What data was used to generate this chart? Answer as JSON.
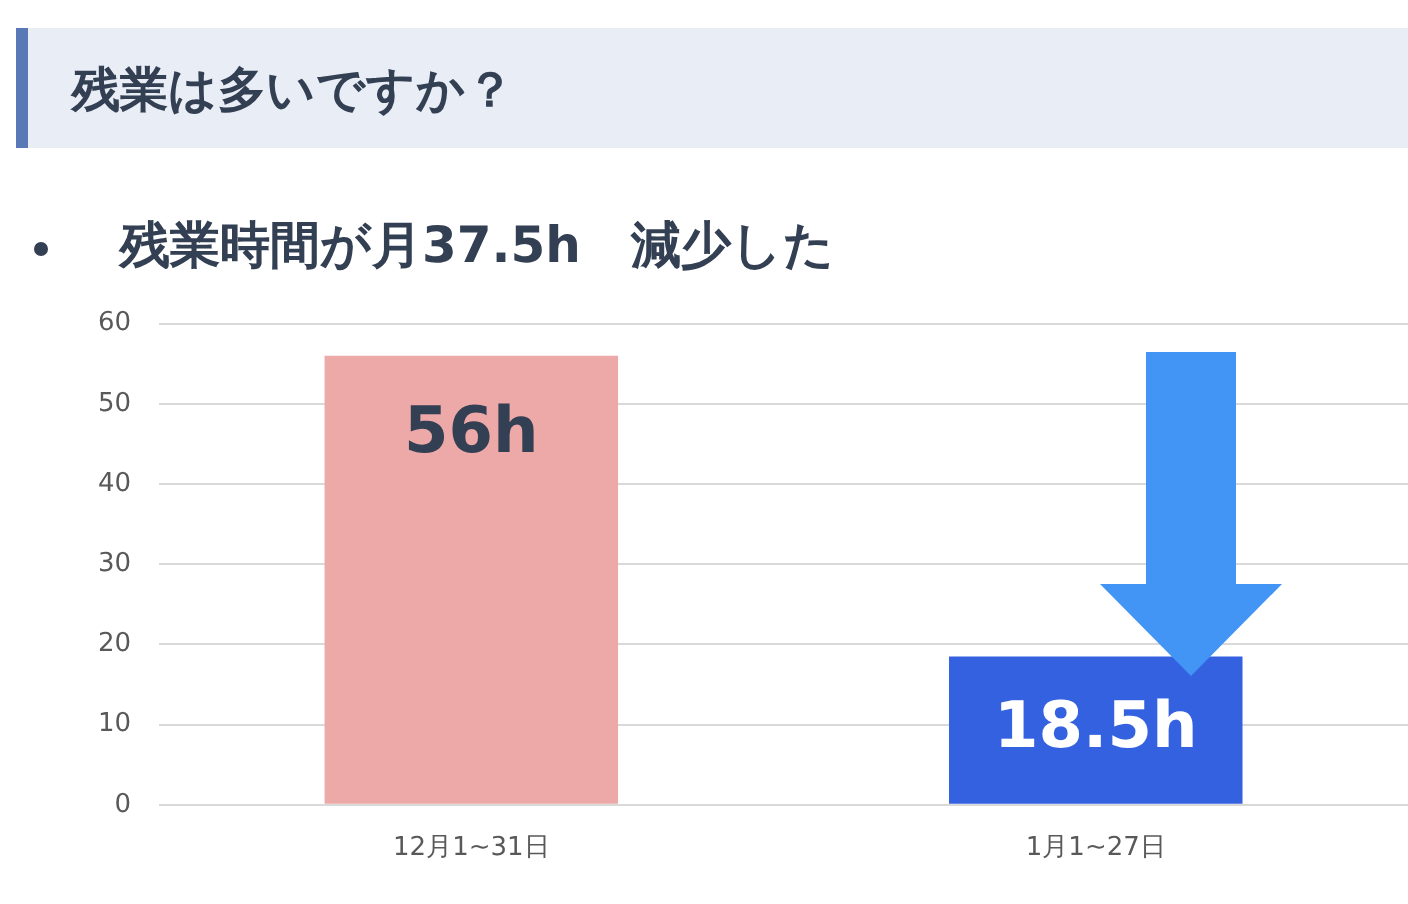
{
  "chart_data": {
    "type": "bar",
    "title": "残業は多いですか？",
    "subtitle": "残業時間が月37.5h　減少した",
    "categories": [
      "12月1~31日",
      "1月1~27日"
    ],
    "values": [
      56,
      18.5
    ],
    "colors": [
      "#eda8a8",
      "#3461e0"
    ],
    "value_labels": [
      "56h",
      "18.5h"
    ],
    "ylim": [
      0,
      60
    ],
    "yticks": [
      0,
      10,
      20,
      30,
      40,
      50,
      60
    ],
    "grid": "y",
    "legend": false
  }
}
